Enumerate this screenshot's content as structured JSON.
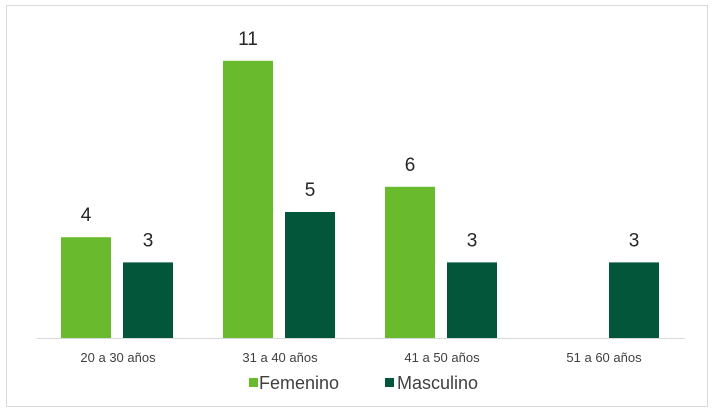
{
  "chart_data": {
    "type": "bar",
    "title": "",
    "xlabel": "",
    "ylabel": "",
    "categories": [
      "20 a 30 años",
      "31 a 40 años",
      "41 a 50 años",
      "51 a 60 años"
    ],
    "series": [
      {
        "name": "Femenino",
        "color": "#6aba2d",
        "values": [
          4,
          11,
          6,
          null
        ]
      },
      {
        "name": "Masculino",
        "color": "#03563a",
        "values": [
          3,
          5,
          3,
          3
        ]
      }
    ],
    "ylim": [
      0,
      12
    ],
    "grid": false,
    "data_labels": true,
    "legend": "bottom"
  }
}
